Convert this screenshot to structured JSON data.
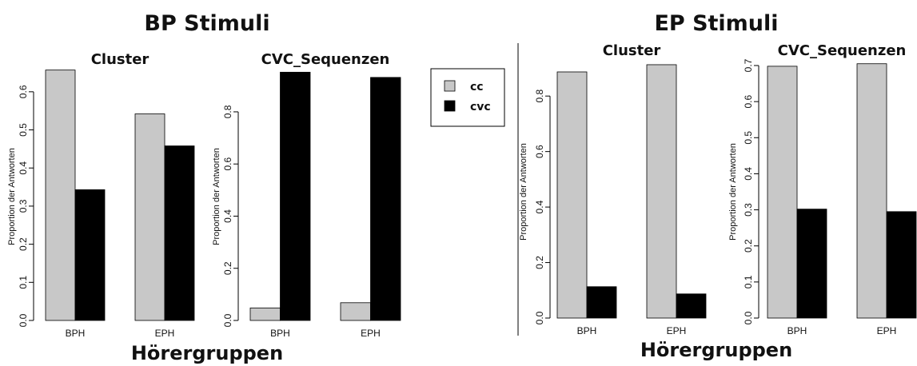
{
  "colors": {
    "cc": "#c8c8c8",
    "cvc": "#000000",
    "axis": "#000000"
  },
  "legend": {
    "entries": [
      {
        "key": "cc",
        "label": "cc"
      },
      {
        "key": "cvc",
        "label": "cvc"
      }
    ]
  },
  "groups": [
    {
      "title": "BP Stimuli",
      "xlabel": "Hörergruppen",
      "panels": [
        {
          "title": "Cluster",
          "ylabel": "Proportion der Antworten",
          "ticks": [
            "0.0",
            "0.1",
            "0.2",
            "0.3",
            "0.4",
            "0.5",
            "0.6"
          ]
        },
        {
          "title": "CVC_Sequenzen",
          "ylabel": "Proportion der Antworten",
          "ticks": [
            "0.0",
            "0.2",
            "0.4",
            "0.6",
            "0.8"
          ]
        }
      ]
    },
    {
      "title": "EP Stimuli",
      "xlabel": "Hörergruppen",
      "panels": [
        {
          "title": "Cluster",
          "ylabel": "Proportion der Antworten",
          "ticks": [
            "0.0",
            "0.2",
            "0.4",
            "0.6",
            "0.8"
          ]
        },
        {
          "title": "CVC_Sequenzen",
          "ylabel": "Proportion der Antworten",
          "ticks": [
            "0.0",
            "0.1",
            "0.2",
            "0.3",
            "0.4",
            "0.5",
            "0.6",
            "0.7"
          ]
        }
      ]
    }
  ],
  "chart_data": [
    {
      "type": "bar",
      "group": "BP Stimuli",
      "title": "Cluster",
      "xlabel": "Hörergruppen",
      "ylabel": "Proportion der Antworten",
      "categories": [
        "BPH",
        "EPH"
      ],
      "ylim": [
        0,
        0.65
      ],
      "series": [
        {
          "name": "cc",
          "values": [
            0.657,
            0.542
          ]
        },
        {
          "name": "cvc",
          "values": [
            0.343,
            0.458
          ]
        }
      ]
    },
    {
      "type": "bar",
      "group": "BP Stimuli",
      "title": "CVC_Sequenzen",
      "xlabel": "Hörergruppen",
      "ylabel": "Proportion der Antworten",
      "categories": [
        "BPH",
        "EPH"
      ],
      "ylim": [
        0,
        0.95
      ],
      "series": [
        {
          "name": "cc",
          "values": [
            0.048,
            0.068
          ]
        },
        {
          "name": "cvc",
          "values": [
            0.952,
            0.932
          ]
        }
      ]
    },
    {
      "type": "bar",
      "group": "EP Stimuli",
      "title": "Cluster",
      "xlabel": "Hörergruppen",
      "ylabel": "Proportion der Antworten",
      "categories": [
        "BPH",
        "EPH"
      ],
      "ylim": [
        0,
        0.91
      ],
      "series": [
        {
          "name": "cc",
          "values": [
            0.887,
            0.913
          ]
        },
        {
          "name": "cvc",
          "values": [
            0.113,
            0.087
          ]
        }
      ]
    },
    {
      "type": "bar",
      "group": "EP Stimuli",
      "title": "CVC_Sequenzen",
      "xlabel": "Hörergruppen",
      "ylabel": "Proportion der Antworten",
      "categories": [
        "BPH",
        "EPH"
      ],
      "ylim": [
        0,
        0.7
      ],
      "series": [
        {
          "name": "cc",
          "values": [
            0.698,
            0.705
          ]
        },
        {
          "name": "cvc",
          "values": [
            0.302,
            0.295
          ]
        }
      ]
    }
  ]
}
